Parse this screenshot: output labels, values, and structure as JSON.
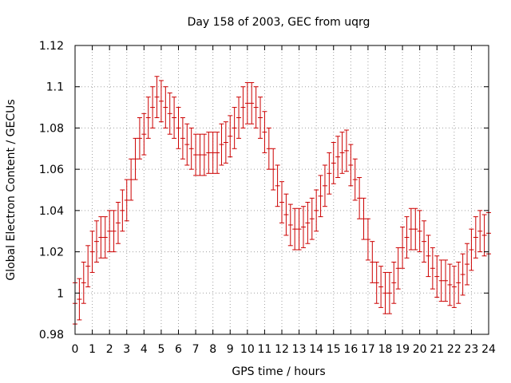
{
  "chart_data": {
    "type": "scatter",
    "title": "Day 158 of 2003, GEC from uqrg",
    "xlabel": "GPS time / hours",
    "ylabel": "Global Electron Content / GECUs",
    "xlim": [
      0,
      24
    ],
    "ylim": [
      0.98,
      1.12
    ],
    "xticks": [
      0,
      1,
      2,
      3,
      4,
      5,
      6,
      7,
      8,
      9,
      10,
      11,
      12,
      13,
      14,
      15,
      16,
      17,
      18,
      19,
      20,
      21,
      22,
      23,
      24
    ],
    "yticks": [
      0.98,
      1,
      1.02,
      1.04,
      1.06,
      1.08,
      1.1,
      1.12
    ],
    "ytick_labels": [
      "0.98",
      "1",
      "1.02",
      "1.04",
      "1.06",
      "1.08",
      "1.1",
      "1.12"
    ],
    "grid": true,
    "legend": "none",
    "colors": {
      "series": "#cc0000",
      "grid": "#a0a0a0",
      "axis": "#000000"
    },
    "series": [
      {
        "error": 0.01,
        "x": [
          0.0,
          0.25,
          0.5,
          0.75,
          1.0,
          1.25,
          1.5,
          1.75,
          2.0,
          2.25,
          2.5,
          2.75,
          3.0,
          3.25,
          3.5,
          3.75,
          4.0,
          4.25,
          4.5,
          4.75,
          5.0,
          5.25,
          5.5,
          5.75,
          6.0,
          6.25,
          6.5,
          6.75,
          7.0,
          7.25,
          7.5,
          7.75,
          8.0,
          8.25,
          8.5,
          8.75,
          9.0,
          9.25,
          9.5,
          9.75,
          10.0,
          10.25,
          10.5,
          10.75,
          11.0,
          11.25,
          11.5,
          11.75,
          12.0,
          12.25,
          12.5,
          12.75,
          13.0,
          13.25,
          13.5,
          13.75,
          14.0,
          14.25,
          14.5,
          14.75,
          15.0,
          15.25,
          15.5,
          15.75,
          16.0,
          16.25,
          16.5,
          16.75,
          17.0,
          17.25,
          17.5,
          17.75,
          18.0,
          18.25,
          18.5,
          18.75,
          19.0,
          19.25,
          19.5,
          19.75,
          20.0,
          20.25,
          20.5,
          20.75,
          21.0,
          21.25,
          21.5,
          21.75,
          22.0,
          22.25,
          22.5,
          22.75,
          23.0,
          23.25,
          23.5,
          23.75,
          24.0
        ],
        "y": [
          0.995,
          0.997,
          1.005,
          1.013,
          1.02,
          1.025,
          1.027,
          1.027,
          1.03,
          1.03,
          1.034,
          1.04,
          1.045,
          1.055,
          1.065,
          1.075,
          1.077,
          1.085,
          1.09,
          1.095,
          1.093,
          1.09,
          1.087,
          1.085,
          1.08,
          1.075,
          1.072,
          1.07,
          1.067,
          1.067,
          1.067,
          1.068,
          1.068,
          1.068,
          1.072,
          1.073,
          1.076,
          1.08,
          1.085,
          1.09,
          1.092,
          1.092,
          1.09,
          1.085,
          1.078,
          1.07,
          1.06,
          1.052,
          1.044,
          1.038,
          1.033,
          1.031,
          1.031,
          1.032,
          1.034,
          1.036,
          1.04,
          1.047,
          1.052,
          1.058,
          1.063,
          1.066,
          1.068,
          1.069,
          1.062,
          1.055,
          1.046,
          1.036,
          1.026,
          1.015,
          1.005,
          1.003,
          1.0,
          1.0,
          1.005,
          1.012,
          1.022,
          1.027,
          1.031,
          1.031,
          1.03,
          1.025,
          1.018,
          1.012,
          1.008,
          1.006,
          1.006,
          1.004,
          1.003,
          1.005,
          1.009,
          1.014,
          1.021,
          1.027,
          1.03,
          1.028,
          1.029
        ]
      }
    ]
  }
}
